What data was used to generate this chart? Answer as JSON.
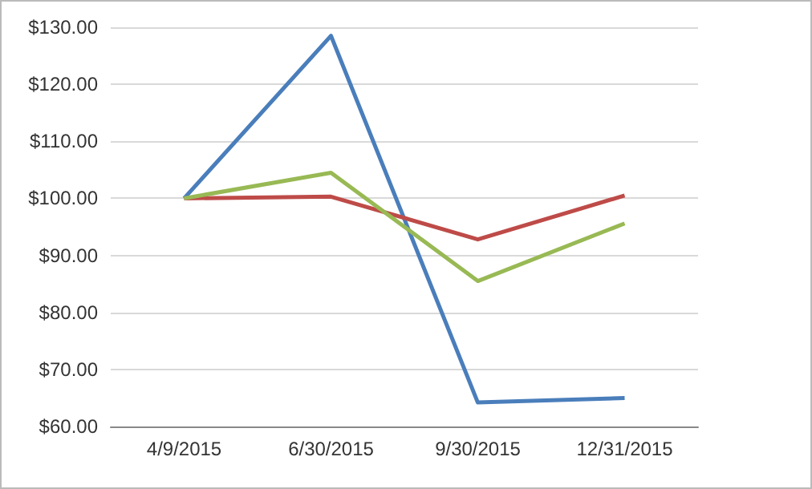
{
  "chart_data": {
    "type": "line",
    "categories": [
      "4/9/2015",
      "6/30/2015",
      "9/30/2015",
      "12/31/2015"
    ],
    "series": [
      {
        "color": "#4a7ebb",
        "values": [
          100,
          128.5,
          64.2,
          65
        ]
      },
      {
        "color": "#be4b48",
        "values": [
          100,
          100.3,
          92.8,
          100.5
        ]
      },
      {
        "color": "#98b954",
        "values": [
          100,
          104.5,
          85.5,
          95.6
        ]
      }
    ],
    "ylim": [
      60,
      130
    ],
    "yticks": [
      {
        "value": 60,
        "label": "$60.00"
      },
      {
        "value": 70,
        "label": "$70.00"
      },
      {
        "value": 80,
        "label": "$80.00"
      },
      {
        "value": 90,
        "label": "$90.00"
      },
      {
        "value": 100,
        "label": "$100.00"
      },
      {
        "value": 110,
        "label": "$110.00"
      },
      {
        "value": 120,
        "label": "$120.00"
      },
      {
        "value": 130,
        "label": "$130.00"
      }
    ],
    "grid": "y",
    "marker": "none",
    "line_style": "solid"
  }
}
